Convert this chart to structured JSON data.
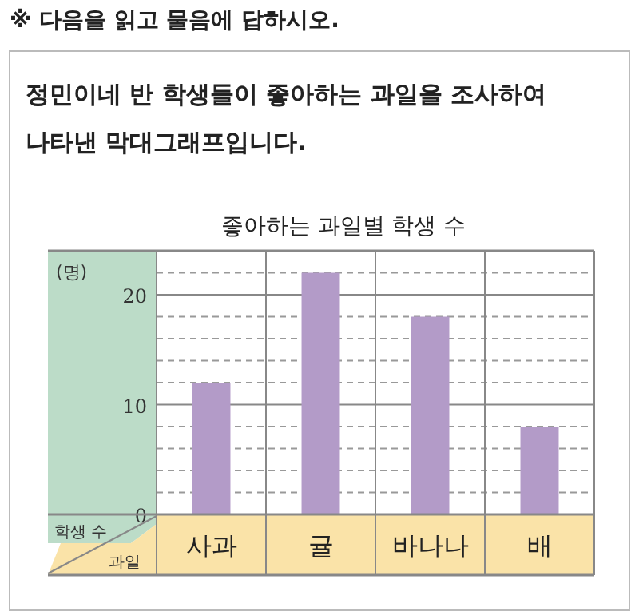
{
  "chart_data": {
    "type": "bar",
    "title": "좋아하는 과일별 학생 수",
    "annotations": [
      "※ 다음을 읽고 물음에 답하시오.",
      "정민이네 반 학생들이 좋아하는 과일을 조사하여 나타낸 막대그래프입니다.",
      "(명)"
    ],
    "xlabel": "과일",
    "ylabel": "학생 수",
    "categories": [
      "사과",
      "귤",
      "바나나",
      "배"
    ],
    "values": [
      12,
      22,
      18,
      8
    ],
    "color": "#b39bc8",
    "ylim": [
      0,
      24
    ],
    "yticks": [
      0,
      {
        "value": 2,
        "label": null
      },
      {
        "value": 4,
        "label": null
      },
      {
        "value": 6,
        "label": null
      },
      {
        "value": 8,
        "label": null
      },
      10,
      {
        "value": 12,
        "label": null
      },
      {
        "value": 14,
        "label": null
      },
      {
        "value": 16,
        "label": null
      },
      {
        "value": 18,
        "label": null
      },
      20,
      {
        "value": 22,
        "label": null
      }
    ],
    "grid": "y"
  }
}
